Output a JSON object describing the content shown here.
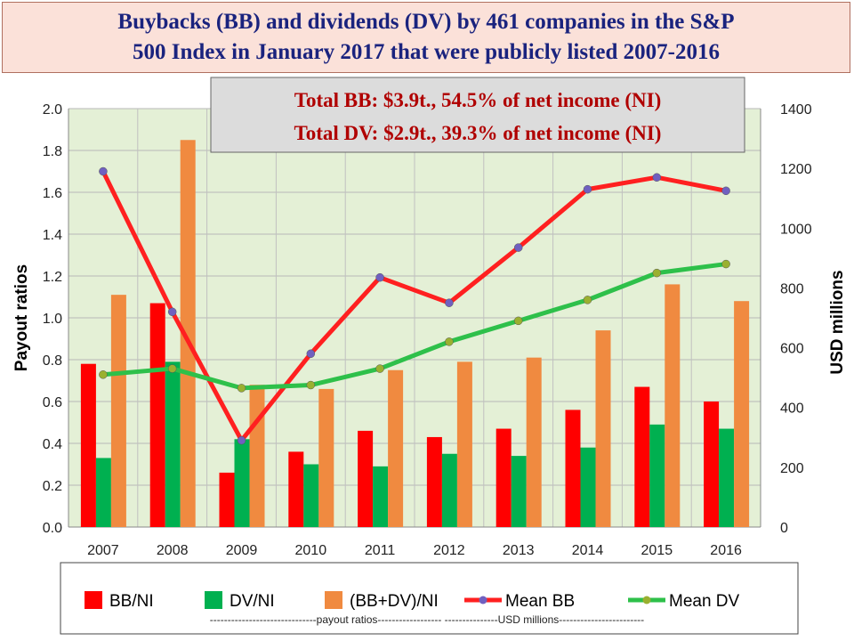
{
  "title": {
    "line1": "Buybacks (BB) and dividends (DV) by 461 companies in the S&P",
    "line2": "500 Index in January 2017 that were publicly listed 2007-2016"
  },
  "annotation": {
    "line1": "Total BB: $3.9t., 54.5% of net income (NI)",
    "line2": "Total DV: $2.9t., 39.3% of net income (NI)"
  },
  "legend": {
    "bb_ni": "BB/NI",
    "dv_ni": "DV/NI",
    "bbdv_ni": "(BB+DV)/NI",
    "mean_bb": "Mean BB",
    "mean_dv": "Mean DV",
    "note": "------------------------------payout   ratios------------------          ---------------USD   millions------------------------"
  },
  "colors": {
    "bb_ni": "#ff0000",
    "dv_ni": "#00b050",
    "bbdv_ni": "#f08a40",
    "mean_bb_line": "#ff2020",
    "mean_bb_marker": "#7060c0",
    "mean_dv_line": "#2ec04a",
    "mean_dv_marker": "#9ab030",
    "plot_bg": "#e4f0d6"
  },
  "chart_data": {
    "type": "bar",
    "categories": [
      "2007",
      "2008",
      "2009",
      "2010",
      "2011",
      "2012",
      "2013",
      "2014",
      "2015",
      "2016"
    ],
    "series": [
      {
        "name": "BB/NI",
        "type": "bar",
        "axis": "left",
        "values": [
          0.78,
          1.07,
          0.26,
          0.36,
          0.46,
          0.43,
          0.47,
          0.56,
          0.67,
          0.6
        ]
      },
      {
        "name": "DV/NI",
        "type": "bar",
        "axis": "left",
        "values": [
          0.33,
          0.79,
          0.42,
          0.3,
          0.29,
          0.35,
          0.34,
          0.38,
          0.49,
          0.47
        ]
      },
      {
        "name": "(BB+DV)/NI",
        "type": "bar",
        "axis": "left",
        "values": [
          1.11,
          1.85,
          0.68,
          0.66,
          0.75,
          0.79,
          0.81,
          0.94,
          1.16,
          1.08
        ]
      },
      {
        "name": "Mean BB",
        "type": "line",
        "axis": "right",
        "values": [
          1190,
          720,
          290,
          580,
          835,
          750,
          935,
          1130,
          1170,
          1125
        ]
      },
      {
        "name": "Mean DV",
        "type": "line",
        "axis": "right",
        "values": [
          510,
          530,
          465,
          475,
          530,
          620,
          690,
          760,
          850,
          880
        ]
      }
    ],
    "ylabel": "Payout ratios",
    "y2label": "USD millions",
    "ylim": [
      0,
      2.0
    ],
    "y2lim": [
      0,
      1400
    ],
    "yticks": [
      "0.0",
      "0.2",
      "0.4",
      "0.6",
      "0.8",
      "1.0",
      "1.2",
      "1.4",
      "1.6",
      "1.8",
      "2.0"
    ],
    "y2ticks": [
      "0",
      "200",
      "400",
      "600",
      "800",
      "1000",
      "1200",
      "1400"
    ],
    "grid": true,
    "legend_position": "bottom"
  }
}
